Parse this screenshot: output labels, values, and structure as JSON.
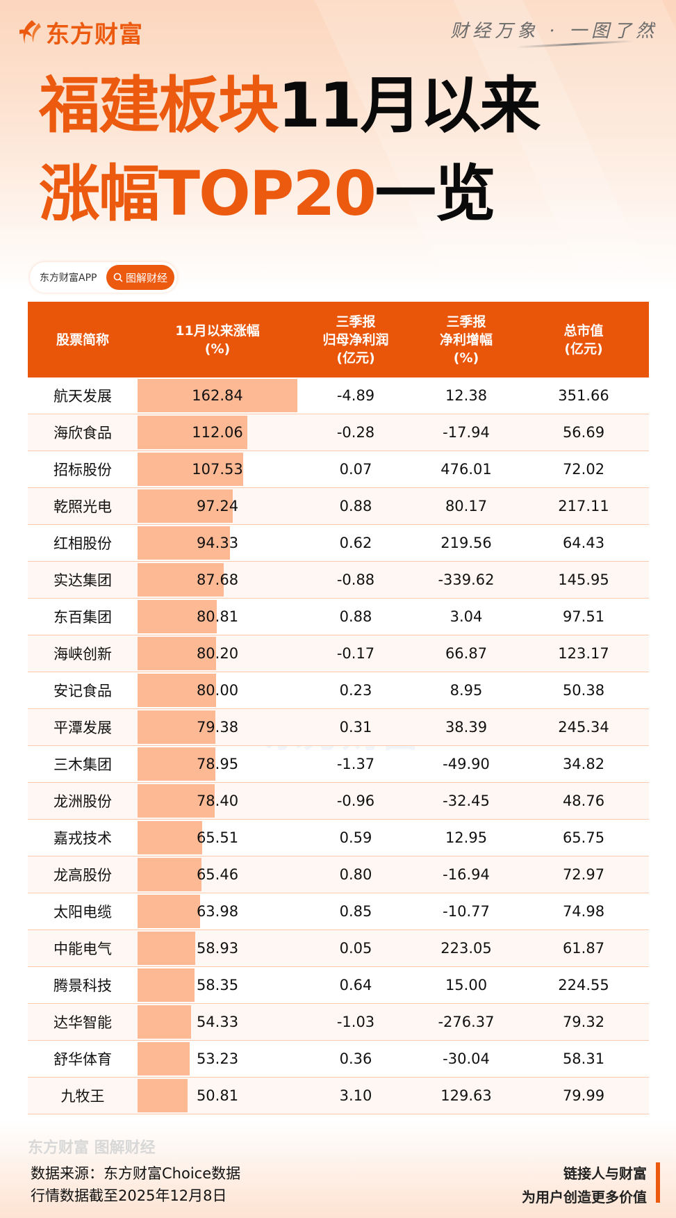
{
  "brand": {
    "logo_text": "东方财富",
    "slogan": "财经万象 · 一图了然",
    "accent": "#ea5609"
  },
  "title": {
    "line1_orange": "福建板块",
    "line1_black": "11月以来",
    "line2_orange": "涨幅TOP20",
    "line2_black": "一览"
  },
  "badge": {
    "left": "东方财富APP",
    "right": "图解财经",
    "icon": "search-icon"
  },
  "chart_data": {
    "type": "table",
    "columns": [
      "股票简称",
      "11月以来涨幅\n(%)",
      "三季报\n归母净利润\n(亿元)",
      "三季报\n净利增幅\n(%)",
      "总市值\n(亿元)"
    ],
    "rows": [
      [
        "航天发展",
        "162.84",
        "-4.89",
        "12.38",
        "351.66"
      ],
      [
        "海欣食品",
        "112.06",
        "-0.28",
        "-17.94",
        "56.69"
      ],
      [
        "招标股份",
        "107.53",
        "0.07",
        "476.01",
        "72.02"
      ],
      [
        "乾照光电",
        "97.24",
        "0.88",
        "80.17",
        "217.11"
      ],
      [
        "红相股份",
        "94.33",
        "0.62",
        "219.56",
        "64.43"
      ],
      [
        "实达集团",
        "87.68",
        "-0.88",
        "-339.62",
        "145.95"
      ],
      [
        "东百集团",
        "80.81",
        "0.88",
        "3.04",
        "97.51"
      ],
      [
        "海峡创新",
        "80.20",
        "-0.17",
        "66.87",
        "123.17"
      ],
      [
        "安记食品",
        "80.00",
        "0.23",
        "8.95",
        "50.38"
      ],
      [
        "平潭发展",
        "79.38",
        "0.31",
        "38.39",
        "245.34"
      ],
      [
        "三木集团",
        "78.95",
        "-1.37",
        "-49.90",
        "34.82"
      ],
      [
        "龙洲股份",
        "78.40",
        "-0.96",
        "-32.45",
        "48.76"
      ],
      [
        "嘉戎技术",
        "65.51",
        "0.59",
        "12.95",
        "65.75"
      ],
      [
        "龙高股份",
        "65.46",
        "0.80",
        "-16.94",
        "72.97"
      ],
      [
        "太阳电缆",
        "63.98",
        "0.85",
        "-10.77",
        "74.98"
      ],
      [
        "中能电气",
        "58.93",
        "0.05",
        "223.05",
        "61.87"
      ],
      [
        "腾景科技",
        "58.35",
        "0.64",
        "15.00",
        "224.55"
      ],
      [
        "达华智能",
        "54.33",
        "-1.03",
        "-276.37",
        "79.32"
      ],
      [
        "舒华体育",
        "53.23",
        "0.36",
        "-30.04",
        "58.31"
      ],
      [
        "九牧王",
        "50.81",
        "3.10",
        "129.63",
        "79.99"
      ]
    ],
    "bar_column": 1,
    "bar_color": "#fdb994"
  },
  "watermark": "东方财富",
  "footer": {
    "watermark": "东方财富 图解财经",
    "source": "数据来源：东方财富Choice数据",
    "date": "行情数据截至2025年12月8日",
    "slogan1": "链接人与财富",
    "slogan2": "为用户创造更多价值"
  }
}
